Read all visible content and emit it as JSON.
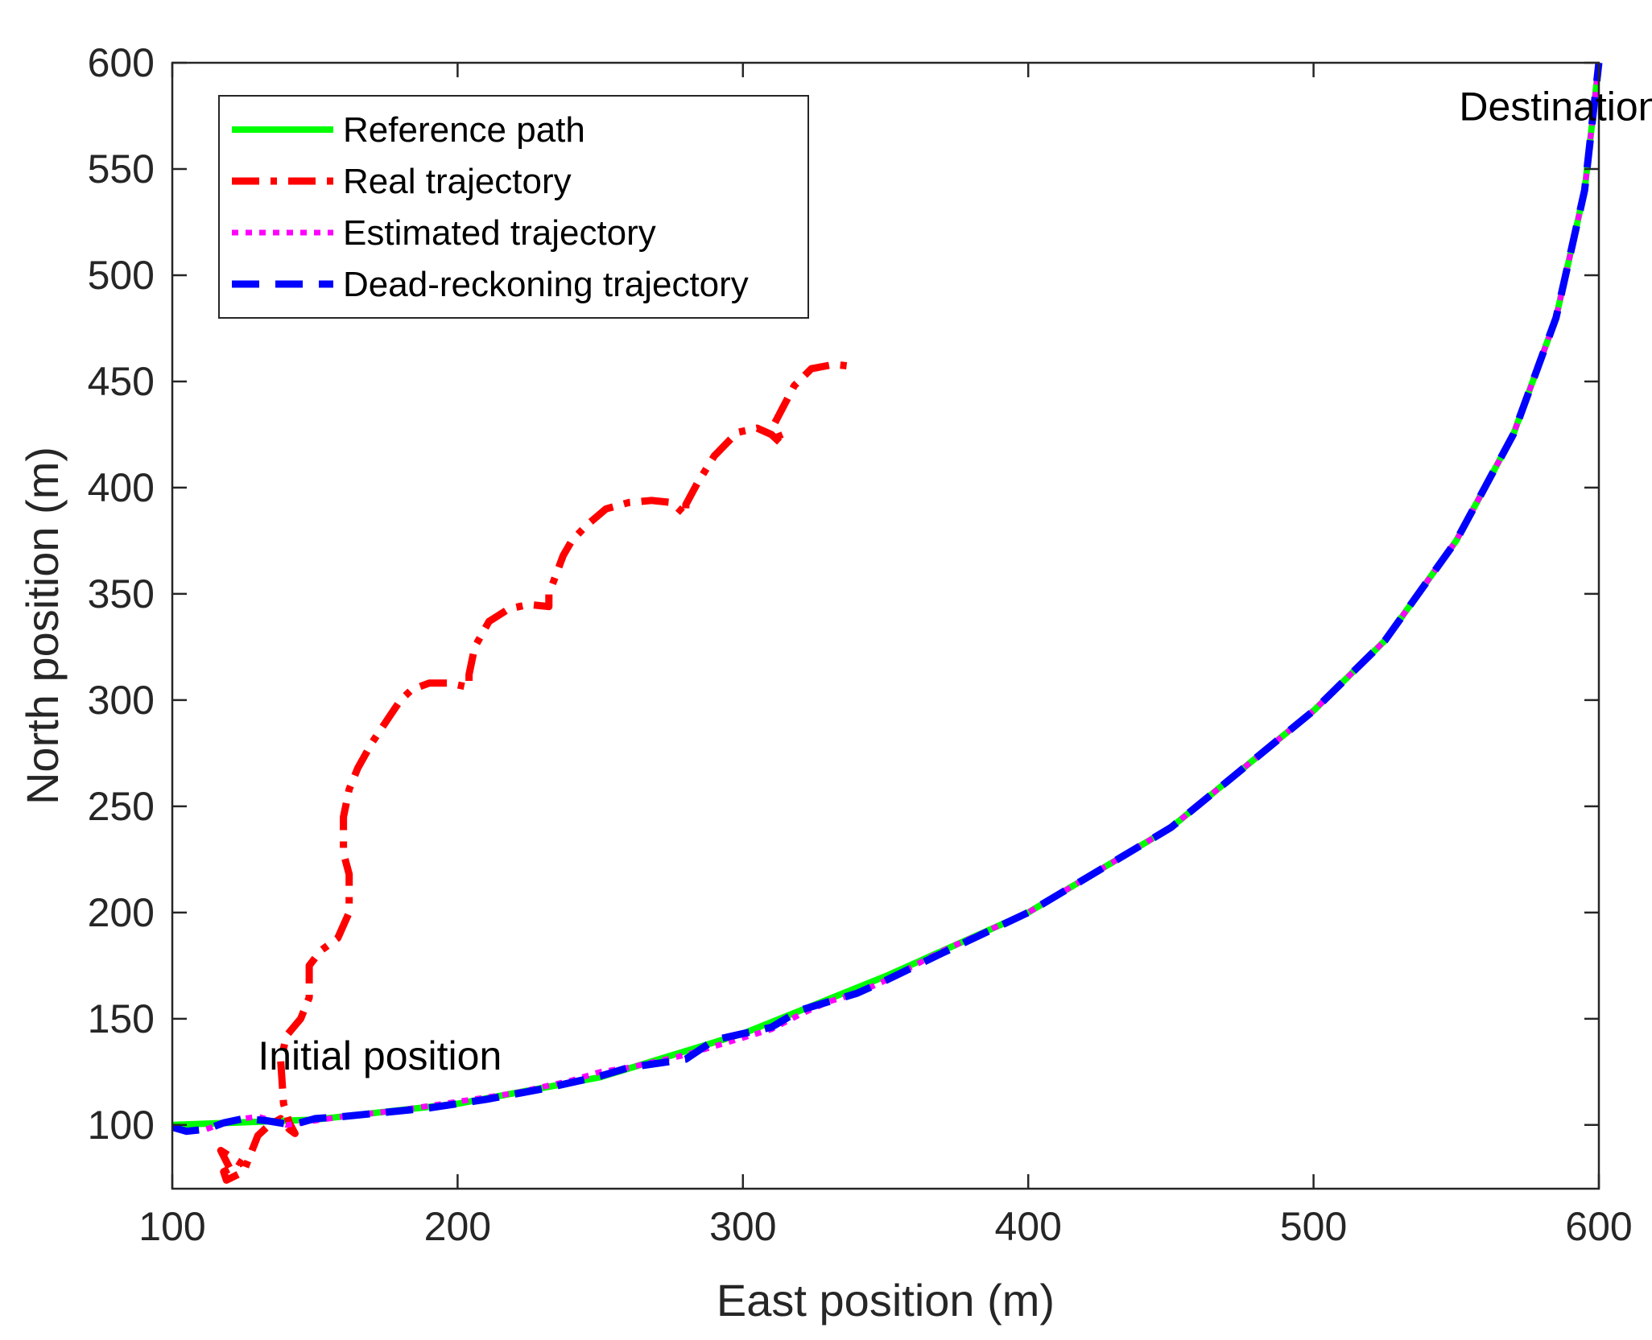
{
  "chart_data": {
    "type": "line",
    "xlabel": "East position (m)",
    "ylabel": "North position (m)",
    "xlim": [
      100,
      600
    ],
    "ylim": [
      70,
      600
    ],
    "xticks": [
      100,
      200,
      300,
      400,
      500,
      600
    ],
    "yticks": [
      100,
      150,
      200,
      250,
      300,
      350,
      400,
      450,
      500,
      550,
      600
    ],
    "grid": false,
    "legend_position": "top-left",
    "annotations": [
      {
        "text": "Destination",
        "x": 551,
        "y": 573
      },
      {
        "text": "Initial position",
        "x": 130,
        "y": 126
      }
    ],
    "series": [
      {
        "name": "Reference path",
        "color": "#00ff00",
        "style": "solid",
        "x": [
          100,
          150,
          200,
          250,
          300,
          350,
          400,
          450,
          500,
          525,
          550,
          570,
          585,
          595,
          600
        ],
        "y": [
          100,
          102.5,
          110,
          122.5,
          143,
          170,
          200,
          240,
          295,
          328,
          375,
          425,
          480,
          540,
          600
        ]
      },
      {
        "name": "Real trajectory",
        "color": "#ff0000",
        "style": "dashdot",
        "x": [
          120,
          117,
          124,
          118,
          119,
          125,
          130,
          134,
          138,
          141,
          143,
          141,
          139,
          138,
          140,
          145,
          148,
          148,
          152,
          158,
          162,
          162,
          160,
          160,
          162,
          165,
          170,
          176,
          180,
          184,
          190,
          197,
          204,
          204,
          206,
          211,
          218,
          225,
          232,
          232,
          237,
          240,
          245,
          252,
          260,
          268,
          275,
          280,
          280,
          284,
          290,
          298,
          305,
          310,
          314,
          311,
          318,
          324,
          332,
          339
        ],
        "y": [
          80,
          88,
          82,
          78,
          74,
          78,
          95,
          100,
          103,
          98,
          96,
          101,
          110,
          130,
          142,
          150,
          160,
          175,
          182,
          188,
          200,
          218,
          228,
          245,
          258,
          268,
          280,
          292,
          300,
          305,
          308,
          308,
          306,
          312,
          325,
          337,
          343,
          345,
          344,
          350,
          368,
          375,
          382,
          390,
          393,
          394,
          393,
          387,
          392,
          402,
          415,
          426,
          428,
          425,
          420,
          430,
          448,
          456,
          458,
          457
        ]
      },
      {
        "name": "Estimated trajectory",
        "color": "#ff00ff",
        "style": "dotted",
        "x": [
          112,
          120,
          130,
          140,
          150,
          160,
          180,
          200,
          220,
          240,
          250,
          260,
          270,
          280,
          290,
          300,
          310,
          320,
          330,
          340,
          350,
          370,
          400,
          450,
          500,
          525,
          550,
          570,
          585,
          595,
          600
        ],
        "y": [
          98,
          102,
          104,
          100,
          102,
          104,
          107,
          111,
          115,
          121,
          125,
          127,
          130,
          133,
          137,
          141,
          145,
          152,
          158,
          162,
          168,
          182,
          200,
          240,
          295,
          328,
          375,
          425,
          480,
          540,
          600
        ]
      },
      {
        "name": "Dead-reckoning trajectory",
        "color": "#0000ff",
        "style": "dashed",
        "x": [
          100,
          105,
          112,
          118,
          125,
          133,
          142,
          150,
          160,
          175,
          190,
          210,
          230,
          250,
          260,
          270,
          280,
          290,
          300,
          310,
          320,
          330,
          340,
          350,
          370,
          400,
          450,
          500,
          525,
          550,
          570,
          585,
          595,
          600
        ],
        "y": [
          99,
          97,
          98,
          101,
          103,
          102,
          100,
          103,
          104,
          106,
          108,
          112,
          117,
          123,
          127,
          129,
          131,
          140,
          143,
          146,
          154,
          158,
          162,
          168,
          181,
          200,
          240,
          295,
          328,
          375,
          425,
          480,
          540,
          600
        ]
      }
    ]
  }
}
